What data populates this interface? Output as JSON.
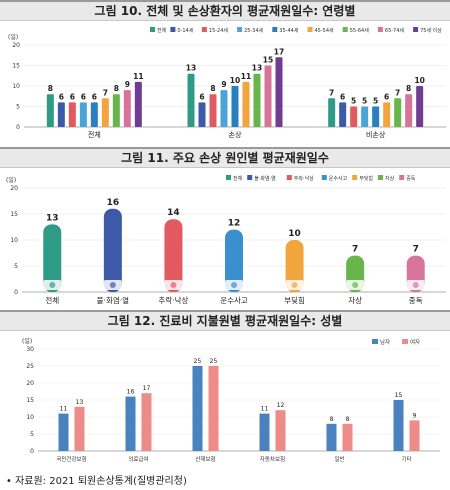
{
  "source_note": "• 자료원: 2021 퇴원손상통계(질병관리청)",
  "chart_data": [
    {
      "type": "bar",
      "title": "그림 10. 전체 및 손상환자의 평균재원일수: 연령별",
      "ylabel": "(일)",
      "ylim": [
        0,
        20
      ],
      "yticks": [
        0,
        5,
        10,
        15,
        20
      ],
      "categories": [
        "전체",
        "손상",
        "비손상"
      ],
      "series": [
        {
          "name": "전체",
          "color": "#2f9b86",
          "values": [
            8,
            13,
            7
          ]
        },
        {
          "name": "0-14세",
          "color": "#3c5aa8",
          "values": [
            6,
            6,
            6
          ]
        },
        {
          "name": "15-24세",
          "color": "#e2595f",
          "values": [
            6,
            8,
            5
          ]
        },
        {
          "name": "25-34세",
          "color": "#4aa4d6",
          "values": [
            6,
            9,
            5
          ]
        },
        {
          "name": "35-44세",
          "color": "#2a7fc0",
          "values": [
            6,
            10,
            5
          ]
        },
        {
          "name": "45-54세",
          "color": "#f2a53c",
          "values": [
            7,
            11,
            6
          ]
        },
        {
          "name": "55-64세",
          "color": "#67b54b",
          "values": [
            8,
            13,
            7
          ]
        },
        {
          "name": "65-74세",
          "color": "#d8749a",
          "values": [
            9,
            15,
            8
          ]
        },
        {
          "name": "75세 이상",
          "color": "#6e3d92",
          "values": [
            11,
            17,
            10
          ]
        }
      ]
    },
    {
      "type": "bar",
      "title": "그림 11. 주요 손상 원인별 평균재원일수",
      "ylabel": "(일)",
      "ylim": [
        0,
        20
      ],
      "yticks": [
        0,
        5,
        10,
        15,
        20
      ],
      "categories": [
        "전체",
        "불·화염·열",
        "추락·낙상",
        "운수사고",
        "부딪힘",
        "자상",
        "중독"
      ],
      "series": [
        {
          "name": "전체",
          "color": "#2f9b86",
          "values": [
            13,
            null,
            null,
            null,
            null,
            null,
            null
          ]
        },
        {
          "name": "불·화염·열",
          "color": "#3c5aa8",
          "values": [
            null,
            16,
            null,
            null,
            null,
            null,
            null
          ]
        },
        {
          "name": "추락·낙상",
          "color": "#e2595f",
          "values": [
            null,
            null,
            14,
            null,
            null,
            null,
            null
          ]
        },
        {
          "name": "운수사고",
          "color": "#3a8fcf",
          "values": [
            null,
            null,
            null,
            12,
            null,
            null,
            null
          ]
        },
        {
          "name": "부딪힘",
          "color": "#f2a53c",
          "values": [
            null,
            null,
            null,
            null,
            10,
            null,
            null
          ]
        },
        {
          "name": "자상",
          "color": "#67b54b",
          "values": [
            null,
            null,
            null,
            null,
            null,
            7,
            null
          ]
        },
        {
          "name": "중독",
          "color": "#d8749a",
          "values": [
            null,
            null,
            null,
            null,
            null,
            null,
            7
          ]
        }
      ]
    },
    {
      "type": "bar",
      "title": "그림 12. 진료비 지불원별 평균재원일수: 성별",
      "ylabel": "(일)",
      "ylim": [
        0,
        30
      ],
      "yticks": [
        0,
        5,
        10,
        15,
        20,
        25,
        30
      ],
      "categories": [
        "국민건강보험",
        "의료급여",
        "산재보험",
        "자동차보험",
        "일반",
        "기타"
      ],
      "series": [
        {
          "name": "남자",
          "color": "#4a82c0",
          "values": [
            11,
            16,
            25,
            11,
            8,
            15
          ]
        },
        {
          "name": "여자",
          "color": "#ec8b88",
          "values": [
            13,
            17,
            25,
            12,
            8,
            9
          ]
        }
      ]
    }
  ]
}
